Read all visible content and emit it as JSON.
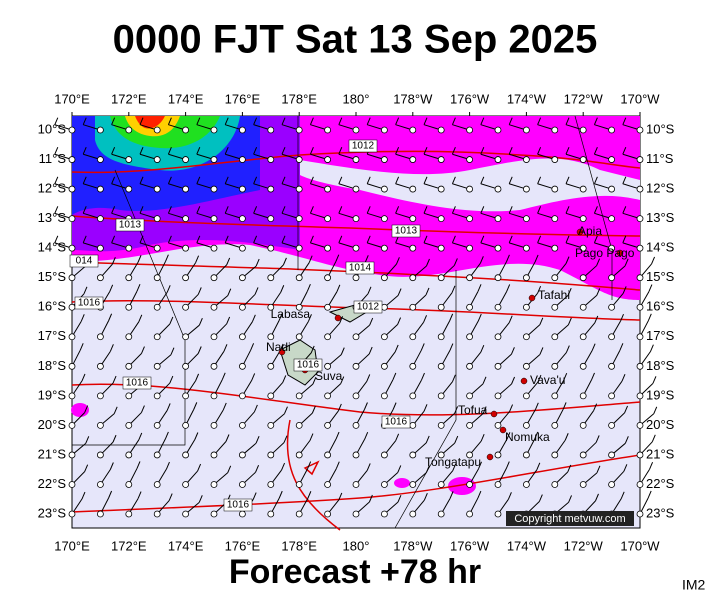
{
  "header": {
    "title": "0000 FJT Sat 13 Sep 2025"
  },
  "footer": {
    "forecast": "Forecast +78 hr",
    "id": "IM2"
  },
  "axes": {
    "lon_labels": [
      "170°E",
      "172°E",
      "174°E",
      "176°E",
      "178°E",
      "180°",
      "178°W",
      "176°W",
      "174°W",
      "172°W",
      "170°W"
    ],
    "lat_labels": [
      "10°S",
      "11°S",
      "12°S",
      "13°S",
      "14°S",
      "15°S",
      "16°S",
      "17°S",
      "18°S",
      "19°S",
      "20°S",
      "21°S",
      "22°S",
      "23°S"
    ]
  },
  "places": [
    "Labasa",
    "Nadi",
    "Suva",
    "Apia",
    "Pago Pago",
    "Tafahi",
    "Vava'u",
    "Tofua",
    "Nomuka",
    "Tongatapu"
  ],
  "isobar_labels": [
    "1012",
    "1013",
    "1013",
    "014",
    "1014",
    "1016",
    "1012",
    "1016",
    "1016",
    "1016",
    "1016"
  ],
  "copyright": "Copyright metvuw.com"
}
